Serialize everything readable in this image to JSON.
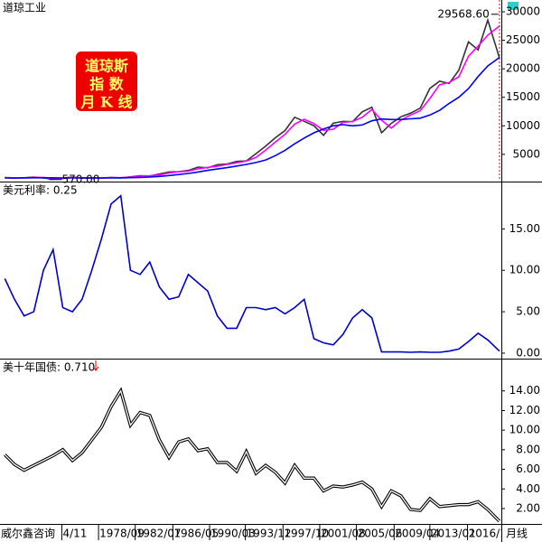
{
  "chart_data": [
    {
      "type": "line",
      "title": "道琼工业",
      "legend_box": [
        "道琼斯",
        "指  数",
        "月 K 线"
      ],
      "high": {
        "x": 2020.1,
        "value": 29568.6,
        "label": "29568.60"
      },
      "low": {
        "x": 1974.9,
        "value": 570,
        "label": "570.00"
      },
      "x": [
        1969,
        1970,
        1971,
        1972,
        1973,
        1974,
        1975,
        1976,
        1977,
        1978,
        1979,
        1980,
        1981,
        1982,
        1983,
        1984,
        1985,
        1986,
        1987,
        1988,
        1989,
        1990,
        1991,
        1992,
        1993,
        1994,
        1995,
        1996,
        1997,
        1998,
        1999,
        2000,
        2001,
        2002,
        2003,
        2004,
        2005,
        2006,
        2007,
        2008,
        2009,
        2010,
        2011,
        2012,
        2013,
        2014,
        2015,
        2016,
        2017,
        2018,
        2019,
        2020.2
      ],
      "series": [
        {
          "color": "#333333",
          "values": [
            900,
            800,
            880,
            1000,
            850,
            620,
            850,
            1000,
            830,
            800,
            840,
            950,
            870,
            1050,
            1250,
            1210,
            1550,
            1900,
            1950,
            2170,
            2750,
            2630,
            3170,
            3300,
            3750,
            3830,
            5120,
            6450,
            7900,
            9180,
            11500,
            10790,
            10020,
            8340,
            10450,
            10780,
            10720,
            12460,
            13260,
            8780,
            10430,
            11580,
            12220,
            13100,
            16580,
            17820,
            17430,
            19760,
            24720,
            23330,
            28540,
            21900
          ]
        },
        {
          "color": "#ff00ff",
          "values": [
            950,
            850,
            850,
            950,
            950,
            750,
            750,
            950,
            900,
            820,
            820,
            900,
            900,
            980,
            1150,
            1230,
            1380,
            1720,
            1930,
            2050,
            2450,
            2700,
            2900,
            3230,
            3520,
            3800,
            4450,
            5750,
            7150,
            8500,
            10300,
            11150,
            10400,
            9200,
            9400,
            10600,
            10750,
            11500,
            12860,
            11000,
            9600,
            11000,
            11900,
            12650,
            14800,
            17200,
            17600,
            18600,
            22200,
            24000,
            25900,
            27500
          ]
        },
        {
          "color": "#0000ff",
          "values": [
            850,
            860,
            870,
            880,
            890,
            880,
            860,
            850,
            860,
            870,
            860,
            860,
            870,
            900,
            950,
            1020,
            1120,
            1280,
            1450,
            1640,
            1900,
            2180,
            2420,
            2660,
            2950,
            3230,
            3560,
            4010,
            4770,
            5700,
            6850,
            7850,
            8770,
            9440,
            10000,
            10200,
            10000,
            10160,
            10880,
            11200,
            11100,
            11100,
            11240,
            11340,
            11900,
            12700,
            13950,
            15000,
            16520,
            18650,
            20500,
            22000
          ]
        }
      ],
      "xlim": [
        1968.5,
        2020.4
      ],
      "ylim": [
        220,
        32070
      ],
      "yticks": [
        5000,
        10000,
        15000,
        20000,
        25000,
        30000
      ]
    },
    {
      "type": "line",
      "title": "美元利率: 0.25",
      "title_color": "#0000aa",
      "x": [
        1969,
        1970,
        1971,
        1972,
        1973,
        1974,
        1975,
        1976,
        1977,
        1978,
        1979,
        1980,
        1981,
        1982,
        1983,
        1984,
        1985,
        1986,
        1987,
        1988,
        1989,
        1990,
        1991,
        1992,
        1993,
        1994,
        1995,
        1996,
        1997,
        1998,
        1999,
        2000,
        2001,
        2002,
        2003,
        2004,
        2005,
        2006,
        2007,
        2008,
        2009,
        2010,
        2011,
        2012,
        2013,
        2014,
        2015,
        2016,
        2017,
        2018,
        2019,
        2020.2
      ],
      "series": [
        {
          "color": "#0000cc",
          "values": [
            9,
            6.5,
            4.5,
            5,
            10,
            12.5,
            5.5,
            5,
            6.5,
            10,
            13.8,
            18,
            19,
            10,
            9.5,
            11,
            8,
            6.5,
            6.8,
            9.5,
            8.5,
            7.5,
            4.5,
            3,
            3,
            5.5,
            5.5,
            5.25,
            5.5,
            4.75,
            5.5,
            6.5,
            1.75,
            1.25,
            1,
            2.25,
            4.25,
            5.25,
            4.25,
            0.15,
            0.15,
            0.15,
            0.1,
            0.15,
            0.1,
            0.1,
            0.25,
            0.5,
            1.4,
            2.4,
            1.6,
            0.25
          ]
        }
      ],
      "xlim": [
        1968.5,
        2020.4
      ],
      "ylim": [
        -0.66,
        20.6
      ],
      "yticks": [
        {
          "value": 0,
          "label": "0.00"
        },
        {
          "value": 5,
          "label": "5.00"
        },
        {
          "value": 10,
          "label": "10.00"
        },
        {
          "value": 15,
          "label": "15.00"
        }
      ]
    },
    {
      "type": "line",
      "title": "美十年国债: 0.710",
      "x": [
        1969,
        1970,
        1971,
        1972,
        1973,
        1974,
        1975,
        1976,
        1977,
        1978,
        1979,
        1980,
        1981,
        1982,
        1983,
        1984,
        1985,
        1986,
        1987,
        1988,
        1989,
        1990,
        1991,
        1992,
        1993,
        1994,
        1995,
        1996,
        1997,
        1998,
        1999,
        2000,
        2001,
        2002,
        2003,
        2004,
        2005,
        2006,
        2007,
        2008,
        2009,
        2010,
        2011,
        2012,
        2013,
        2014,
        2015,
        2016,
        2017,
        2018,
        2019,
        2020.2
      ],
      "series": [
        {
          "color": "#000000",
          "values": [
            7.5,
            6.5,
            5.9,
            6.4,
            6.9,
            7.4,
            8,
            6.9,
            7.7,
            9,
            10.3,
            12.4,
            14,
            10.5,
            11.8,
            11.5,
            9,
            7.2,
            8.8,
            9.1,
            7.9,
            8.1,
            6.7,
            6.7,
            5.8,
            7.8,
            5.6,
            6.4,
            5.7,
            4.6,
            6.4,
            5.1,
            5.1,
            3.8,
            4.3,
            4.2,
            4.4,
            4.7,
            4,
            2.2,
            3.8,
            3.3,
            1.9,
            1.8,
            3,
            2.2,
            2.3,
            2.4,
            2.4,
            2.7,
            1.9,
            0.71
          ]
        }
      ],
      "xlim": [
        1968.5,
        2020.4
      ],
      "ylim": [
        0.43,
        17.2
      ],
      "yticks": [
        {
          "value": 2,
          "label": "2.00"
        },
        {
          "value": 4,
          "label": "4.00"
        },
        {
          "value": 6,
          "label": "6.00"
        },
        {
          "value": 8,
          "label": "8.00"
        },
        {
          "value": 10,
          "label": "10.00"
        },
        {
          "value": 12,
          "label": "12.00"
        },
        {
          "value": 14,
          "label": "14.00"
        }
      ],
      "source": "威尔鑫咨询",
      "period": "月线",
      "xticks": [
        {
          "value": 1974.9,
          "label": "4/11"
        },
        {
          "value": 1978.7,
          "label": "1978/09"
        },
        {
          "value": 1982.5,
          "label": "1982/07"
        },
        {
          "value": 1986.4,
          "label": "1986/05"
        },
        {
          "value": 1990.2,
          "label": "1990/03"
        },
        {
          "value": 1993.9,
          "label": "1993/12"
        },
        {
          "value": 1997.8,
          "label": "1997/10"
        },
        {
          "value": 2001.6,
          "label": "2001/08"
        },
        {
          "value": 2005.4,
          "label": "2005/06"
        },
        {
          "value": 2009.3,
          "label": "2009/04"
        },
        {
          "value": 2013.0,
          "label": "2013/01"
        },
        {
          "value": 2016.9,
          "label": "2016/11"
        }
      ]
    }
  ]
}
